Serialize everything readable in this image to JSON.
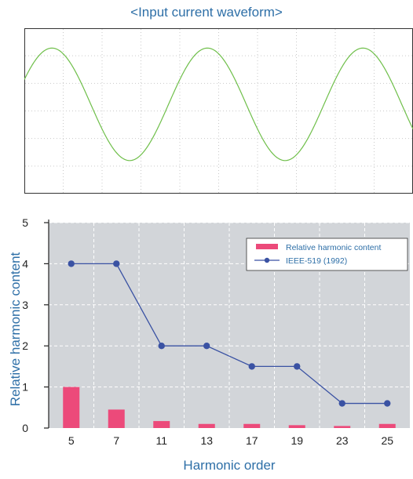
{
  "chart_data": [
    {
      "type": "line",
      "title": "<Input current waveform>",
      "series": [
        {
          "shape": "sine",
          "cycles_visible": 2.5,
          "amplitude_of_panel_height": 0.34
        }
      ],
      "grid": true,
      "colors": {
        "line": "#6fbf4a",
        "grid": "#c9c9c9",
        "border": "#333333"
      }
    },
    {
      "type": "bar",
      "xlabel": "Harmonic order",
      "ylabel": "Relative harmonic content",
      "categories": [
        "5",
        "7",
        "11",
        "13",
        "17",
        "19",
        "23",
        "25"
      ],
      "ylim": [
        0,
        5
      ],
      "yticks": [
        0,
        1,
        2,
        3,
        4,
        5
      ],
      "series": [
        {
          "name": "Relative harmonic content",
          "kind": "bar",
          "color": "#ec4a7a",
          "values": [
            1.0,
            0.45,
            0.17,
            0.1,
            0.1,
            0.07,
            0.05,
            0.1
          ]
        },
        {
          "name": "IEEE-519 (1992)",
          "kind": "line",
          "color": "#3a52a3",
          "values": [
            4,
            4,
            2,
            2,
            1.5,
            1.5,
            0.6,
            0.6
          ]
        }
      ],
      "grid": true,
      "legend": "top-right",
      "colors": {
        "plot_bg": "#d2d5d9",
        "grid": "#ffffff",
        "label": "#2e6fa7"
      }
    }
  ]
}
